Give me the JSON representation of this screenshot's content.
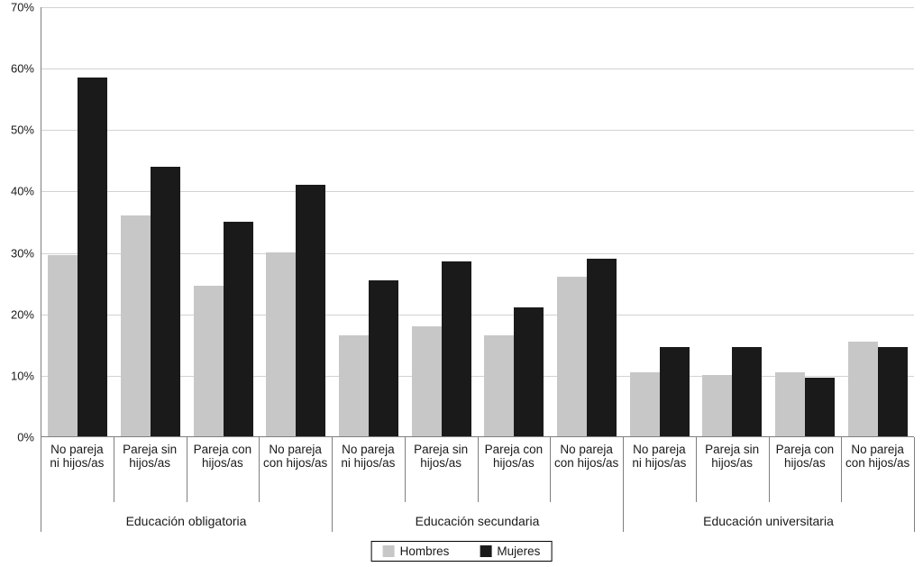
{
  "chart_data": {
    "type": "bar",
    "title": "",
    "xlabel": "",
    "ylabel": "",
    "ylim": [
      0,
      70
    ],
    "ytick_step": 10,
    "ytick_suffix": "%",
    "grid": true,
    "legend_position": "bottom",
    "groups": [
      {
        "label": "Educación obligatoria",
        "categories": [
          "No pareja ni hijos/as",
          "Pareja sin hijos/as",
          "Pareja con hijos/as",
          "No pareja con hijos/as"
        ]
      },
      {
        "label": "Educación secundaria",
        "categories": [
          "No pareja ni hijos/as",
          "Pareja sin hijos/as",
          "Pareja con hijos/as",
          "No pareja con hijos/as"
        ]
      },
      {
        "label": "Educación universitaria",
        "categories": [
          "No pareja ni hijos/as",
          "Pareja sin hijos/as",
          "Pareja con hijos/as",
          "No pareja con hijos/as"
        ]
      }
    ],
    "series": [
      {
        "name": "Hombres",
        "color": "#c7c7c7",
        "values": [
          29.5,
          36,
          24.5,
          30,
          16.5,
          18,
          16.5,
          26,
          10.5,
          10,
          10.5,
          15.5
        ]
      },
      {
        "name": "Mujeres",
        "color": "#1a1a1a",
        "values": [
          58.5,
          44,
          35,
          41,
          25.5,
          28.5,
          21,
          29,
          14.5,
          14.5,
          9.5,
          14.5
        ]
      }
    ],
    "colors": {
      "gridline": "#d2d2d2",
      "axis": "#7f7f7f",
      "text": "#1a1a1a"
    }
  }
}
